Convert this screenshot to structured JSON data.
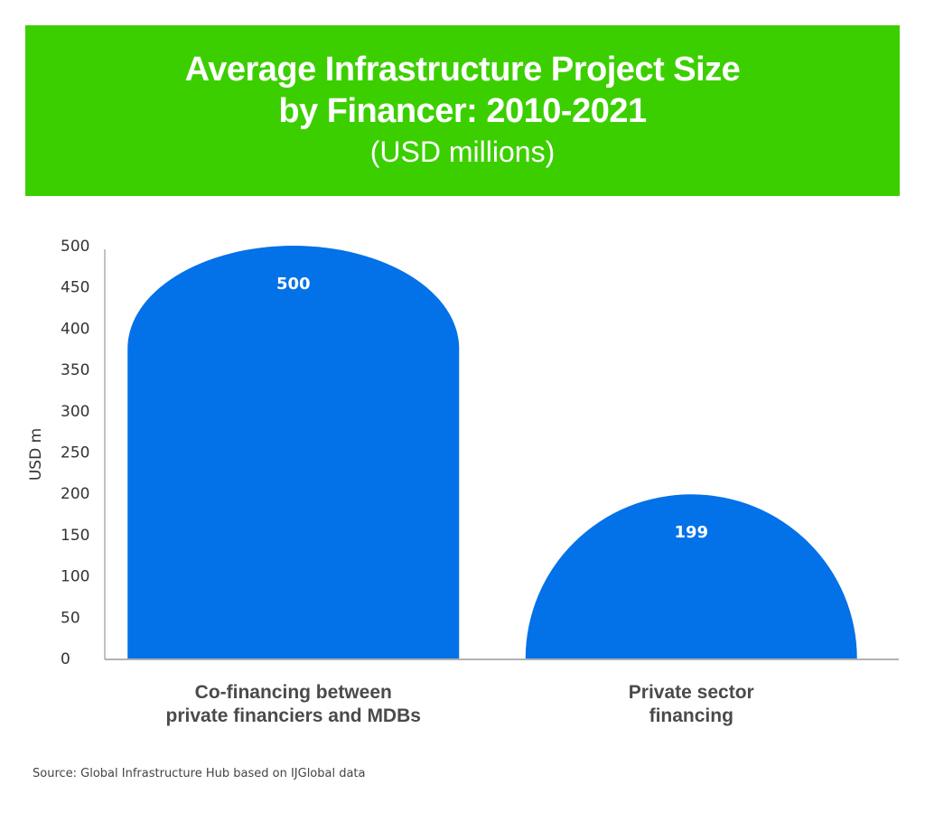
{
  "header": {
    "title_line1": "Average Infrastructure Project Size",
    "title_line2": "by Financer: 2010-2021",
    "subtitle": "(USD millions)"
  },
  "colors": {
    "banner": "#3ccf00",
    "bar": "#0371e8",
    "axis": "#999999"
  },
  "chart_data": {
    "type": "bar",
    "title": "Average Infrastructure Project Size by Financer: 2010-2021",
    "subtitle": "(USD millions)",
    "xlabel": "",
    "ylabel": "USD m",
    "categories": [
      [
        "Co-financing between",
        "private financiers and MDBs"
      ],
      [
        "Private sector",
        "financing"
      ]
    ],
    "category_names": [
      "Co-financing between private financiers and MDBs",
      "Private sector financing"
    ],
    "values": [
      500,
      199
    ],
    "data_labels": [
      "500",
      "199"
    ],
    "ylim": [
      0,
      500
    ],
    "yticks": [
      0,
      50,
      100,
      150,
      200,
      250,
      300,
      350,
      400,
      450,
      500
    ],
    "grid": false,
    "legend": "none",
    "bar_style": "rounded-top"
  },
  "footer": {
    "source": "Source: Global Infrastructure Hub based on IJGlobal data"
  }
}
